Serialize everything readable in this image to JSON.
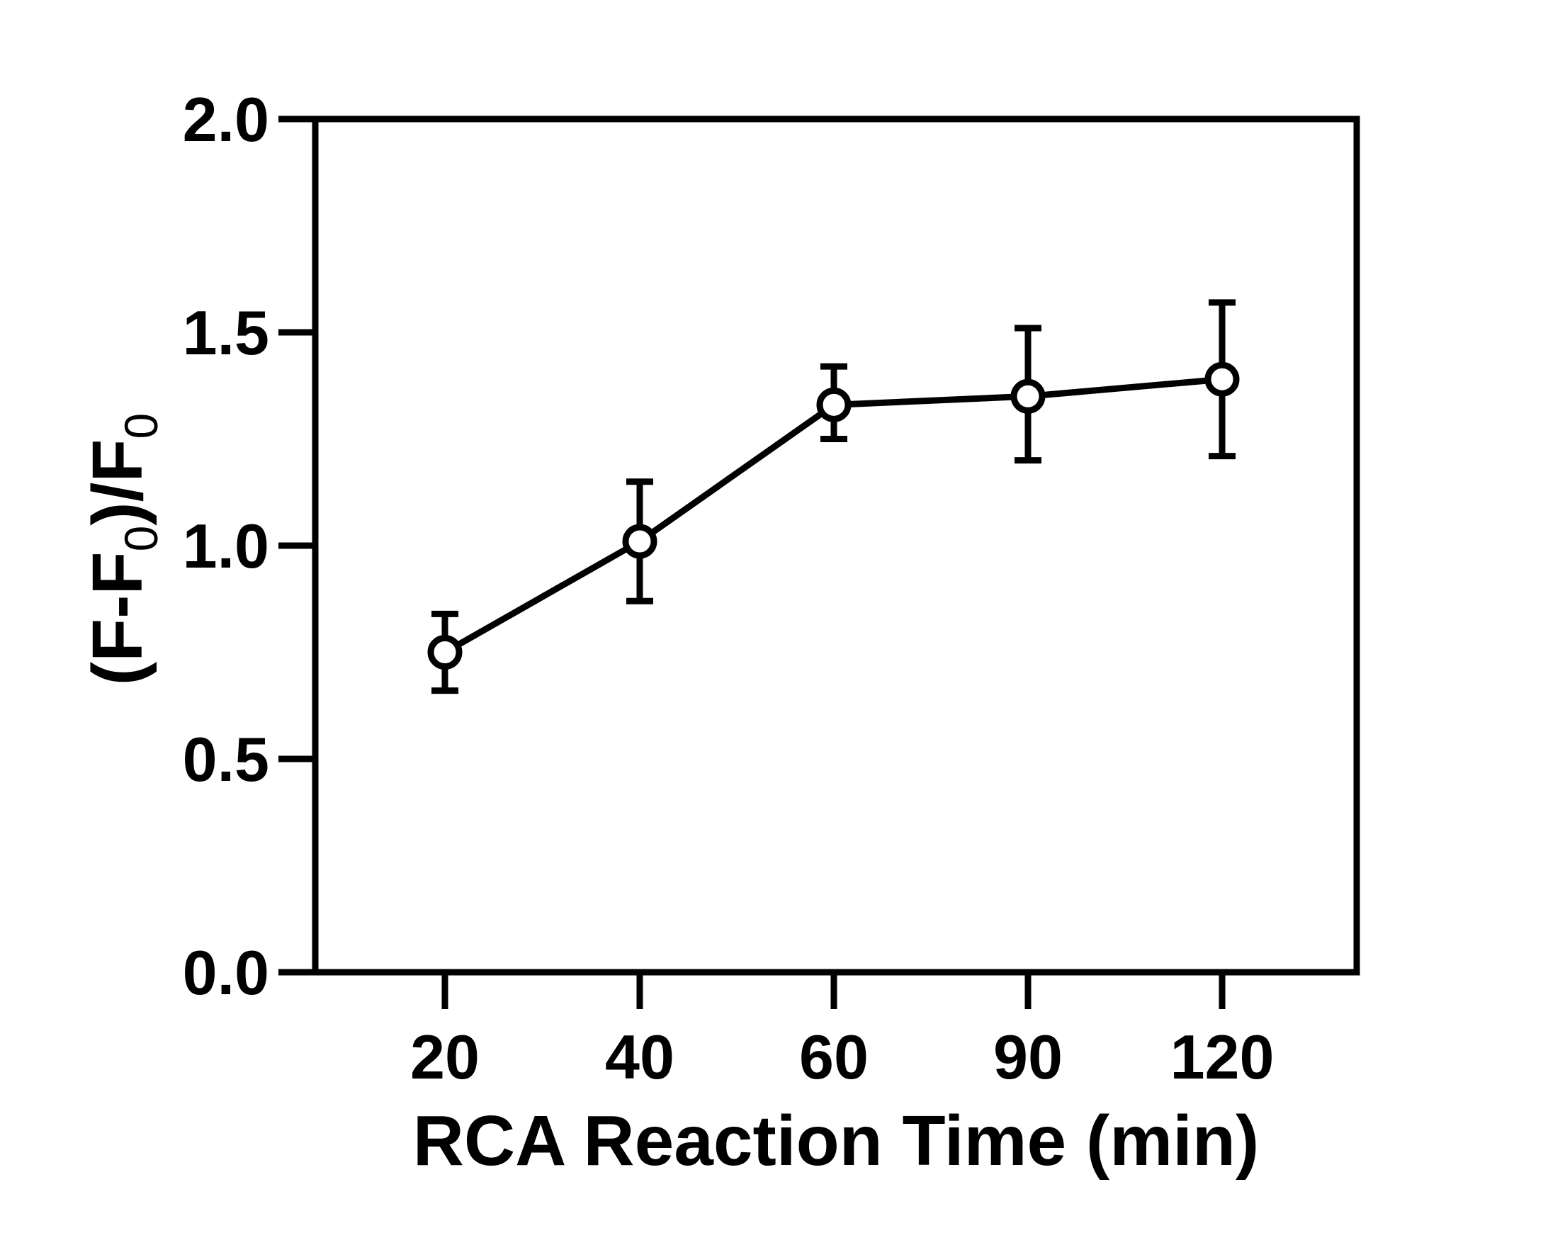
{
  "chart_data": {
    "type": "line",
    "xlabel": "RCA Reaction Time (min)",
    "ylabel": "(F-F0)/F0",
    "ylabel_parts": {
      "open": "(F-F",
      "sub1": "0",
      "mid": ")/F",
      "sub2": "0"
    },
    "categories": [
      "20",
      "40",
      "60",
      "90",
      "120"
    ],
    "ylim": [
      0.0,
      2.0
    ],
    "yticks": [
      "0.0",
      "0.5",
      "1.0",
      "1.5",
      "2.0"
    ],
    "grid": false,
    "legend": "none",
    "series": [
      {
        "values": [
          0.75,
          1.01,
          1.33,
          1.35,
          1.39
        ],
        "error_lower": [
          0.66,
          0.87,
          1.25,
          1.2,
          1.21
        ],
        "error_upper": [
          0.84,
          1.15,
          1.42,
          1.51,
          1.57
        ],
        "marker": "open-circle",
        "color": "#000000"
      }
    ]
  }
}
